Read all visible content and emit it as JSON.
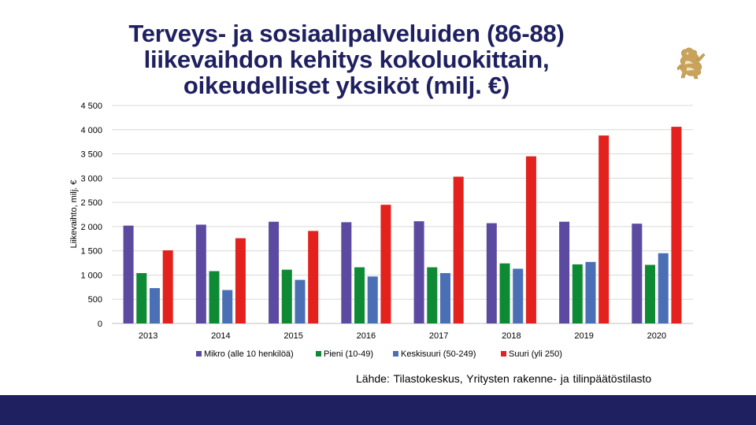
{
  "slide": {
    "title_lines": [
      "Terveys- ja sosiaalipalveluiden (86-88)",
      "liikevaihdon kehitys kokoluokittain,",
      "oikeudelliset yksiköt (milj. €)"
    ],
    "source": "Lähde: Tilastokeskus, Yritysten rakenne- ja tilinpäätöstilasto",
    "colors": {
      "title": "#1f2060",
      "footer_bar": "#1f2060",
      "logo": "#c9a35a"
    },
    "logo_icon": "finnish-lion-emblem-icon"
  },
  "chart_data": {
    "type": "bar",
    "title": "",
    "xlabel": "",
    "ylabel": "Liikevaihto, milj. €",
    "ylim": [
      0,
      4500
    ],
    "yticks": [
      0,
      500,
      1000,
      1500,
      2000,
      2500,
      3000,
      3500,
      4000,
      4500
    ],
    "ytick_labels": [
      "0",
      "500",
      "1 000",
      "1 500",
      "2 000",
      "2 500",
      "3 000",
      "3 500",
      "4 000",
      "4 500"
    ],
    "grid": "horizontal",
    "legend_position": "bottom",
    "categories": [
      "2013",
      "2014",
      "2015",
      "2016",
      "2017",
      "2018",
      "2019",
      "2020"
    ],
    "series": [
      {
        "name": "Mikro (alle 10 henkilöä)",
        "color": "#5b4a9f",
        "values": [
          2020,
          2040,
          2100,
          2090,
          2110,
          2070,
          2100,
          2060
        ]
      },
      {
        "name": "Pieni (10-49)",
        "color": "#0f8a34",
        "values": [
          1040,
          1080,
          1110,
          1160,
          1160,
          1240,
          1220,
          1210
        ]
      },
      {
        "name": "Keskisuuri (50-249)",
        "color": "#4a6fb5",
        "values": [
          730,
          690,
          900,
          970,
          1040,
          1130,
          1270,
          1450
        ]
      },
      {
        "name": "Suuri (yli 250)",
        "color": "#e3211d",
        "values": [
          1510,
          1760,
          1910,
          2450,
          3030,
          3450,
          3880,
          4060
        ]
      }
    ]
  }
}
